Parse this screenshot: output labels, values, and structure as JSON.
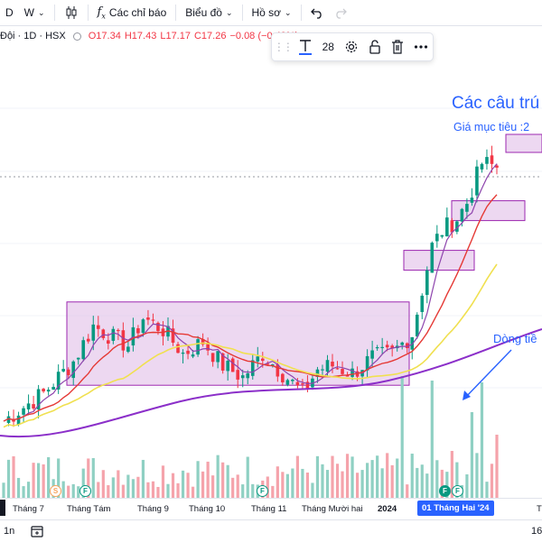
{
  "toolbar": {
    "interval_partial": "D",
    "interval_week": "W",
    "indicators_label": "Các chỉ báo",
    "chart_type_label": "Biểu đồ",
    "profile_label": "Hồ sơ"
  },
  "legend": {
    "symbol": "Đội · 1D · HSX",
    "open": "O17.34",
    "high": "H17.43",
    "low": "L17.17",
    "close": "C17.26",
    "change": "−0.08 (−0.49%)"
  },
  "drawing_toolbar": {
    "font_size": "28"
  },
  "annotations": {
    "title": "Các câu trú",
    "target": "Giá mục tiêu :2",
    "flow": "Dòng tiề"
  },
  "time_axis": {
    "labels": [
      "Tháng 7",
      "Tháng Tám",
      "Tháng 9",
      "Tháng 10",
      "Tháng 11",
      "Tháng Mười hai",
      "2024",
      "01 Tháng Hai '24"
    ],
    "right_partial": "T"
  },
  "event_badges": {
    "s": "S",
    "f": "F"
  },
  "bottom": {
    "range_label": "1n",
    "right_label": "16"
  },
  "colors": {
    "up": "#089981",
    "down": "#f23645",
    "accent": "#2962ff",
    "zone_fill": "#e1bee7",
    "zone_border": "#9c27b0",
    "ma_fast": "#8e44ad",
    "ma_mid": "#e53935",
    "ma_slow": "#f0e050",
    "ma_long": "#8b2fc9"
  },
  "chart_data": {
    "type": "candlestick",
    "symbol": "Đội · 1D · HSX",
    "x": [
      "2023-06",
      "2023-07",
      "2023-08",
      "2023-09",
      "2023-10",
      "2023-11",
      "2023-12",
      "2024-01",
      "2024-02"
    ],
    "close_approx": [
      12.2,
      13.4,
      14.1,
      14.2,
      13.3,
      12.9,
      13.2,
      15.5,
      17.3
    ],
    "last_bar": {
      "open": 17.34,
      "high": 17.43,
      "low": 17.17,
      "close": 17.26,
      "change": -0.08,
      "change_pct": -0.49
    },
    "series": [
      {
        "name": "",
        "kind": "moving-average-fast"
      },
      {
        "name": "",
        "kind": "moving-average-mid"
      },
      {
        "name": "",
        "kind": "moving-average-slow"
      },
      {
        "name": "",
        "kind": "moving-average-long"
      }
    ],
    "grid": true
  }
}
